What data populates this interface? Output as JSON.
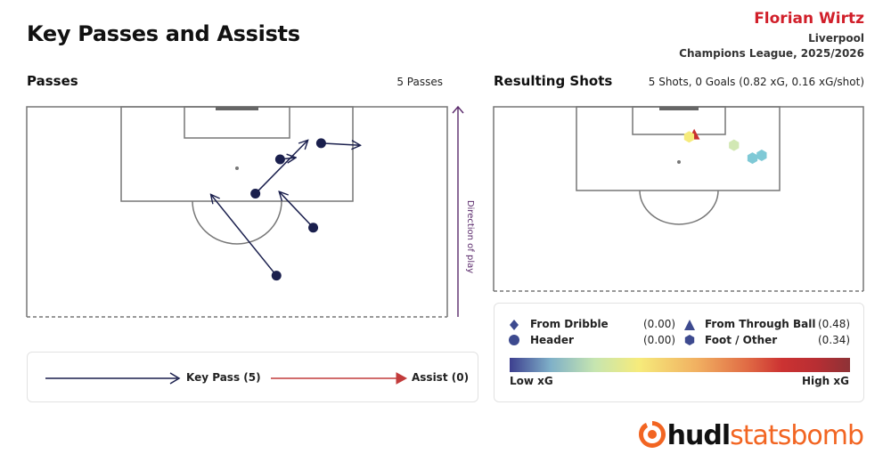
{
  "header": {
    "title": "Key Passes and Assists",
    "player": "Florian Wirtz",
    "team": "Liverpool",
    "competition": "Champions League, 2025/2026"
  },
  "passes_panel": {
    "title": "Passes",
    "count_label": "5 Passes",
    "direction_label": "Direction of play"
  },
  "shots_panel": {
    "title": "Resulting Shots",
    "summary": "5 Shots, 0 Goals (0.82 xG, 0.16 xG/shot)"
  },
  "pass_legend": {
    "key_pass": "Key Pass (5)",
    "assist": "Assist (0)",
    "key_pass_color": "#1a1f4d",
    "assist_color": "#c23b3b"
  },
  "shot_legend": {
    "items": [
      {
        "icon": "diamond-icon",
        "label": "From Dribble",
        "value": "(0.00)"
      },
      {
        "icon": "triangle-icon",
        "label": "From Through Ball",
        "value": "(0.48)"
      },
      {
        "icon": "circle-icon",
        "label": "Header",
        "value": "(0.00)"
      },
      {
        "icon": "hexagon-icon",
        "label": "Foot / Other",
        "value": "(0.34)"
      }
    ],
    "low_label": "Low xG",
    "high_label": "High xG"
  },
  "brand": {
    "name_a": "hudl",
    "name_b": "statsbomb",
    "color": "#f26522"
  },
  "chart_data": [
    {
      "type": "scatter",
      "subtype": "pass-map",
      "pitch": "half (attacking), StatsBomb 120x80 coordinates",
      "passes": [
        {
          "start": [
            71.8,
            47.5
          ],
          "end": [
            95.0,
            35.0
          ],
          "kind": "key_pass"
        },
        {
          "start": [
            85.5,
            54.5
          ],
          "end": [
            95.8,
            48.0
          ],
          "kind": "key_pass"
        },
        {
          "start": [
            105.0,
            48.2
          ],
          "end": [
            105.5,
            51.2
          ],
          "kind": "key_pass"
        },
        {
          "start": [
            95.2,
            43.5
          ],
          "end": [
            110.5,
            53.5
          ],
          "kind": "key_pass"
        },
        {
          "start": [
            109.6,
            56.0
          ],
          "end": [
            109.0,
            63.5
          ],
          "kind": "key_pass"
        }
      ]
    },
    {
      "type": "scatter",
      "subtype": "shot-map",
      "shots": [
        {
          "x": 110.8,
          "y": 43.4,
          "shape": "triangle",
          "xg": 0.48,
          "color": "#c8302f"
        },
        {
          "x": 110.2,
          "y": 42.3,
          "shape": "hexagon",
          "xg": 0.2,
          "color": "#f6eb7b"
        },
        {
          "x": 107.5,
          "y": 52.0,
          "shape": "hexagon",
          "xg": 0.05,
          "color": "#d2e8b4"
        },
        {
          "x": 104.2,
          "y": 58.0,
          "shape": "hexagon",
          "xg": 0.04,
          "color": "#7fc9d6"
        },
        {
          "x": 103.3,
          "y": 56.0,
          "shape": "hexagon",
          "xg": 0.05,
          "color": "#7fc9d6"
        }
      ]
    }
  ]
}
